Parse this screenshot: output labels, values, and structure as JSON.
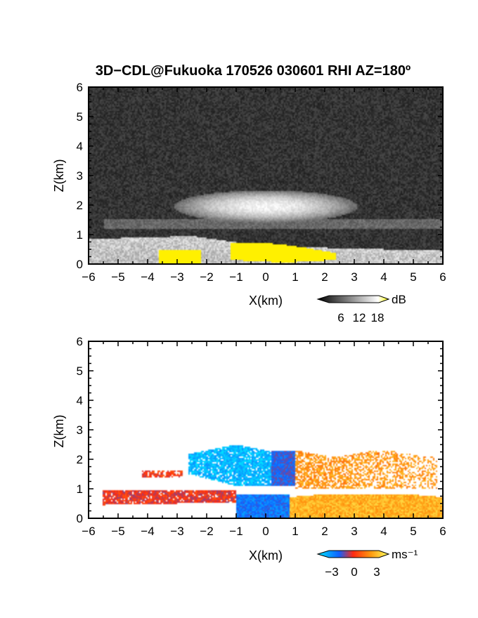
{
  "title": "3D−CDL@Fukuoka 170526 030601 RHI AZ=180º",
  "colors": {
    "background": "#ffffff",
    "axis": "#000000",
    "snr_noise": "#3a3a3a",
    "snr_bright": "#e6e6e6",
    "snr_saturated": "#ffff00",
    "doppler_neg": "#00d8ff",
    "doppler_zero": "#ff3a10",
    "doppler_pos": "#ffe030"
  },
  "chart_data": [
    {
      "type": "heatmap",
      "panel": "top",
      "variable": "SNR",
      "xlabel": "X(km)",
      "ylabel": "Z(km)",
      "xlim": [
        -6,
        6
      ],
      "ylim": [
        0,
        6
      ],
      "xticks": [
        "−6",
        "−5",
        "−4",
        "−3",
        "−2",
        "−1",
        "0",
        "1",
        "2",
        "3",
        "4",
        "5",
        "6"
      ],
      "yticks": [
        "0",
        "1",
        "2",
        "3",
        "4",
        "5",
        "6"
      ],
      "colorbar": {
        "ticks": [
          "6",
          "12",
          "18"
        ],
        "unit": "dB",
        "range": [
          0,
          21
        ]
      },
      "layers": [
        {
          "name": "noise",
          "x": [
            -6,
            6
          ],
          "z": [
            0,
            6
          ],
          "value": 2
        },
        {
          "name": "upper-layer",
          "x_center": 0,
          "x_halfwidth": 3.1,
          "z_center": 1.95,
          "z_halfwidth": 0.55,
          "value": 12
        },
        {
          "name": "mid-layer",
          "x": [
            -5.5,
            6
          ],
          "z_center": 1.35,
          "z_halfwidth": 0.15,
          "value": 6
        },
        {
          "name": "boundary-layer",
          "x": [
            -6,
            6
          ],
          "z_top": [
            [
              -6,
              0.85
            ],
            [
              -2.5,
              0.95
            ],
            [
              0,
              0.6
            ],
            [
              6,
              0.45
            ]
          ],
          "value": 16
        },
        {
          "name": "saturated-core",
          "x": [
            -1.2,
            2.4
          ],
          "z": [
            0,
            0.7
          ],
          "value": 20
        }
      ]
    },
    {
      "type": "heatmap",
      "panel": "bottom",
      "variable": "Doppler velocity",
      "xlabel": "X(km)",
      "ylabel": "Z(km)",
      "xlim": [
        -6,
        6
      ],
      "ylim": [
        0,
        6
      ],
      "xticks": [
        "−6",
        "−5",
        "−4",
        "−3",
        "−2",
        "−1",
        "0",
        "1",
        "2",
        "3",
        "4",
        "5",
        "6"
      ],
      "yticks": [
        "0",
        "1",
        "2",
        "3",
        "4",
        "5",
        "6"
      ],
      "colorbar": {
        "ticks": [
          "−3",
          "0",
          "3"
        ],
        "unit": "ms⁻¹",
        "range": [
          -4,
          4
        ]
      },
      "regions": [
        {
          "name": "upper-left",
          "x": [
            -2.6,
            0.2
          ],
          "z": [
            1.1,
            2.5
          ],
          "velocity": -3.2
        },
        {
          "name": "upper-mid",
          "x": [
            0.2,
            1.0
          ],
          "z": [
            1.1,
            2.3
          ],
          "velocity": -1.5
        },
        {
          "name": "upper-right",
          "x": [
            1.0,
            5.8
          ],
          "z": [
            1.0,
            2.3
          ],
          "velocity": 2.0
        },
        {
          "name": "left-fragment",
          "x": [
            -4.2,
            -2.8
          ],
          "z": [
            1.4,
            1.6
          ],
          "velocity": 0.2
        },
        {
          "name": "low-left-band",
          "x": [
            -5.5,
            -1.0
          ],
          "z": [
            0.45,
            0.95
          ],
          "velocity": 0.0
        },
        {
          "name": "low-center",
          "x": [
            -1.0,
            0.8
          ],
          "z": [
            0.0,
            0.8
          ],
          "velocity": -2.0
        },
        {
          "name": "low-right-dome",
          "x": [
            0.8,
            6.0
          ],
          "z": [
            0.0,
            0.8
          ],
          "velocity": 2.5
        }
      ]
    }
  ]
}
